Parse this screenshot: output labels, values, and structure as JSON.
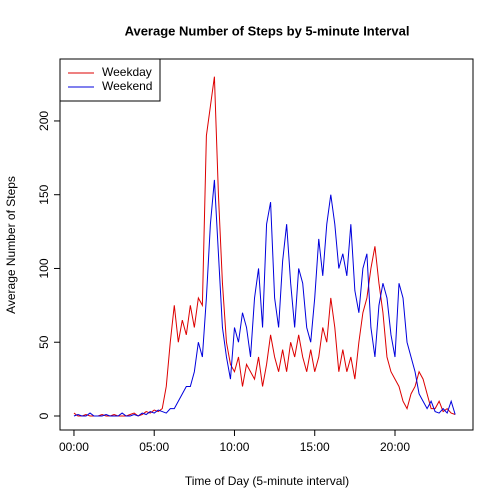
{
  "chart_data": {
    "type": "line",
    "title": "Average Number of Steps by 5-minute Interval",
    "x_label": "Time of Day (5-minute interval)",
    "y_label": "Average Number of Steps",
    "x": [
      0,
      0.25,
      0.5,
      0.75,
      1,
      1.25,
      1.5,
      1.75,
      2,
      2.25,
      2.5,
      2.75,
      3,
      3.25,
      3.5,
      3.75,
      4,
      4.25,
      4.5,
      4.75,
      5,
      5.25,
      5.5,
      5.75,
      6,
      6.25,
      6.5,
      6.75,
      7,
      7.25,
      7.5,
      7.75,
      8,
      8.25,
      8.5,
      8.75,
      9,
      9.25,
      9.5,
      9.75,
      10,
      10.25,
      10.5,
      10.75,
      11,
      11.25,
      11.5,
      11.75,
      12,
      12.25,
      12.5,
      12.75,
      13,
      13.25,
      13.5,
      13.75,
      14,
      14.25,
      14.5,
      14.75,
      15,
      15.25,
      15.5,
      15.75,
      16,
      16.25,
      16.5,
      16.75,
      17,
      17.25,
      17.5,
      17.75,
      18,
      18.25,
      18.5,
      18.75,
      19,
      19.25,
      19.5,
      19.75,
      20,
      20.25,
      20.5,
      20.75,
      21,
      21.25,
      21.5,
      21.75,
      22,
      22.25,
      22.5,
      22.75,
      23,
      23.25,
      23.5,
      23.75
    ],
    "series": [
      {
        "name": "Weekday",
        "color": "#dd0000",
        "values": [
          2,
          0,
          0,
          1,
          0,
          0,
          0,
          1,
          0,
          0,
          1,
          0,
          0,
          0,
          1,
          2,
          0,
          1,
          3,
          2,
          4,
          3,
          5,
          20,
          50,
          75,
          50,
          65,
          55,
          75,
          60,
          80,
          75,
          190,
          210,
          230,
          150,
          90,
          50,
          35,
          30,
          40,
          20,
          35,
          30,
          25,
          40,
          20,
          35,
          55,
          40,
          30,
          45,
          30,
          50,
          40,
          55,
          40,
          30,
          45,
          30,
          40,
          60,
          50,
          80,
          60,
          30,
          45,
          30,
          40,
          25,
          50,
          70,
          80,
          100,
          115,
          90,
          70,
          40,
          30,
          25,
          20,
          10,
          5,
          15,
          20,
          30,
          25,
          15,
          5,
          5,
          10,
          3,
          5,
          2,
          1
        ]
      },
      {
        "name": "Weekend",
        "color": "#0000dd",
        "values": [
          0,
          1,
          0,
          0,
          2,
          0,
          0,
          0,
          1,
          0,
          0,
          0,
          2,
          0,
          0,
          1,
          0,
          2,
          1,
          3,
          2,
          4,
          3,
          2,
          5,
          5,
          10,
          15,
          20,
          20,
          30,
          50,
          40,
          80,
          130,
          160,
          110,
          60,
          40,
          25,
          60,
          50,
          70,
          60,
          40,
          80,
          100,
          60,
          130,
          145,
          80,
          60,
          105,
          130,
          90,
          60,
          100,
          90,
          60,
          50,
          80,
          120,
          95,
          130,
          150,
          130,
          100,
          110,
          95,
          130,
          85,
          70,
          100,
          110,
          60,
          40,
          75,
          90,
          80,
          55,
          40,
          90,
          80,
          50,
          40,
          30,
          15,
          10,
          5,
          10,
          3,
          2,
          5,
          2,
          10,
          1
        ]
      }
    ],
    "xlim": [
      -0.87,
      24.86
    ],
    "ylim": [
      -9.5,
      242
    ],
    "xticks": [
      {
        "value": 0,
        "label": "00:00"
      },
      {
        "value": 5,
        "label": "05:00"
      },
      {
        "value": 10,
        "label": "10:00"
      },
      {
        "value": 15,
        "label": "15:00"
      },
      {
        "value": 20,
        "label": "20:00"
      }
    ],
    "yticks": [
      0,
      50,
      100,
      150,
      200
    ],
    "legend": "top-left"
  }
}
